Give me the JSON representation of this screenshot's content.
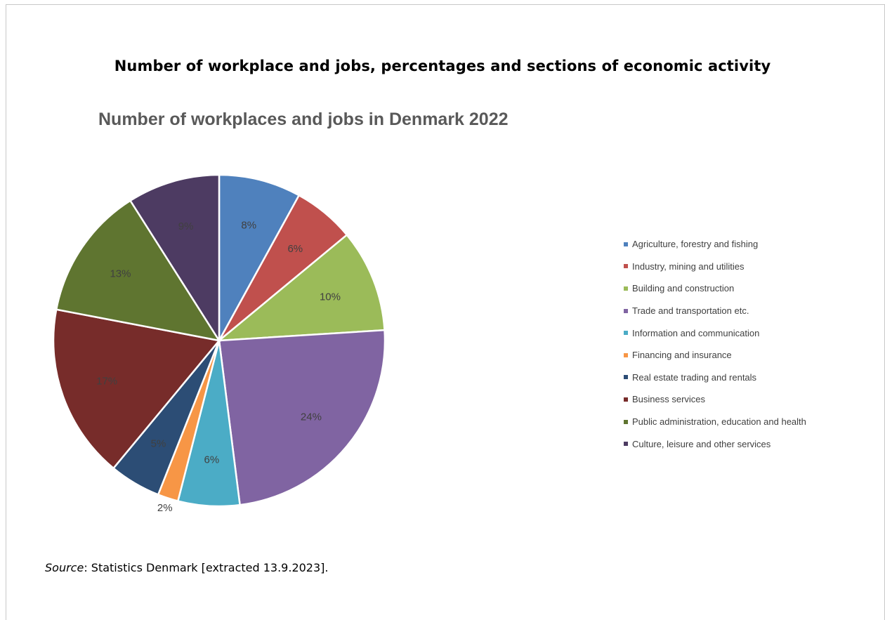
{
  "heading": "Number of workplace and jobs, percentages and sections of economic activity",
  "source": {
    "label": "Source",
    "text": ": Statistics Denmark [extracted 13.9.2023]."
  },
  "chart_data": {
    "type": "pie",
    "title": "Number of workplaces and jobs in Denmark 2022",
    "legend_position": "right",
    "categories": [
      "Agriculture, forestry and fishing",
      "Industry, mining and utilities",
      "Building and construction",
      "Trade and transportation etc.",
      "Information and communication",
      "Financing and insurance",
      "Real estate trading and rentals",
      "Business services",
      "Public administration, education and health",
      "Culture, leisure and other services"
    ],
    "values": [
      8,
      6,
      10,
      24,
      6,
      2,
      5,
      17,
      13,
      9
    ],
    "labels": [
      "8%",
      "6%",
      "10%",
      "24%",
      "6%",
      "2%",
      "5%",
      "17%",
      "13%",
      "9%"
    ],
    "colors": [
      "#4f81bd",
      "#c0504d",
      "#9bbb59",
      "#8064a2",
      "#4bacc6",
      "#f79646",
      "#2c4d75",
      "#772c2a",
      "#5f7530",
      "#4d3b62"
    ]
  }
}
